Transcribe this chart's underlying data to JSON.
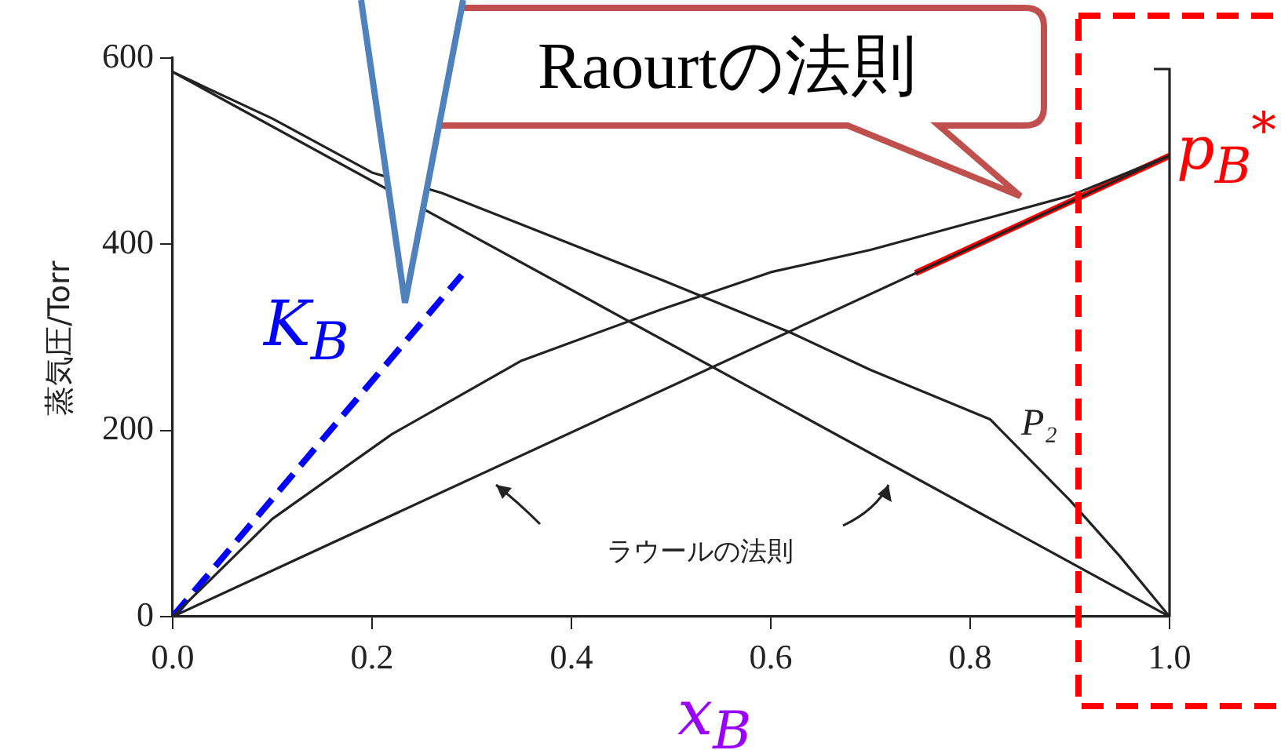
{
  "chart_data": {
    "type": "line",
    "xlabel": "x$_{B}$",
    "ylabel": "蒸気圧/Torr",
    "xlim": [
      0,
      1
    ],
    "ylim": [
      0,
      600
    ],
    "xticks": [
      {
        "value": 0,
        "label": "0.0"
      },
      {
        "value": 0.2,
        "label": "0.2"
      },
      {
        "value": 0.4,
        "label": "0.4"
      },
      {
        "value": 0.6,
        "label": "0.6"
      },
      {
        "value": 0.8,
        "label": "0.8"
      },
      {
        "value": 1,
        "label": "1.0"
      }
    ],
    "yticks": [
      0,
      200,
      400,
      600
    ],
    "grid": false,
    "legend": false,
    "marker": "none",
    "series": [
      {
        "color": "#222222",
        "x": [
          0,
          1
        ],
        "values": [
          585,
          0
        ]
      },
      {
        "color": "#222222",
        "x": [
          0,
          1
        ],
        "values": [
          0,
          495
        ]
      },
      {
        "color": "#222222",
        "x": [
          0,
          0.1,
          0.2,
          0.27,
          0.4,
          0.49,
          0.62,
          0.7,
          0.82,
          0.9,
          0.95,
          1
        ],
        "values": [
          585,
          535,
          477,
          455,
          400,
          362,
          305,
          265,
          212,
          125,
          65,
          0
        ]
      },
      {
        "color": "#222222",
        "x": [
          0,
          0.1,
          0.22,
          0.35,
          0.49,
          0.6,
          0.7,
          0.8,
          0.9,
          1
        ],
        "values": [
          0,
          105,
          196,
          275,
          330,
          370,
          394,
          423,
          452,
          495
        ]
      },
      {
        "color": "#ff0000",
        "x": [
          0.745,
          1
        ],
        "values": [
          369,
          495
        ]
      },
      {
        "color": "#0000ff",
        "line_style": "dashed",
        "x": [
          0,
          0.29
        ],
        "values": [
          0,
          367
        ]
      }
    ],
    "annotations": [
      "Raourtの法則",
      "K$_{B}$",
      {
        "text": "p$_{B}$$^{*}$",
        "x": 1,
        "y": 495
      },
      "P₂",
      "ラウールの法則"
    ]
  }
}
